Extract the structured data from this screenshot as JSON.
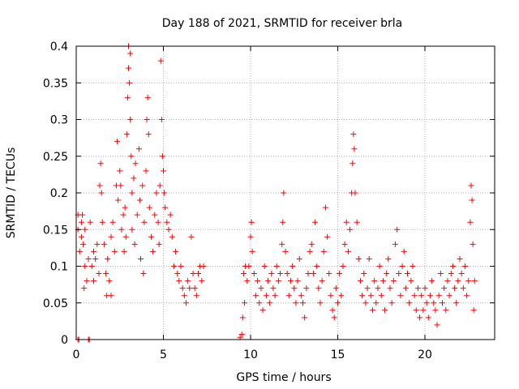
{
  "chart_data": {
    "type": "scatter",
    "title": "Day 188 of 2021, SRMTID for receiver brla",
    "xlabel": "GPS time / hours",
    "ylabel": "SRMTID / TECUs",
    "xlim": [
      0,
      24
    ],
    "ylim": [
      0,
      0.4
    ],
    "xticks": [
      0,
      5,
      10,
      15,
      20
    ],
    "xtick_labels": [
      "0",
      "5",
      "10",
      "15",
      "20"
    ],
    "yticks": [
      0,
      0.05,
      0.1,
      0.15,
      0.2,
      0.25,
      0.3,
      0.35,
      0.4
    ],
    "ytick_labels": [
      "0",
      "0.05",
      "0.1",
      "0.15",
      "0.2",
      "0.25",
      "0.3",
      "0.35",
      "0.4"
    ],
    "grid": true,
    "marker": "+",
    "color": "#ff0000",
    "series": [
      {
        "name": "SRMTID",
        "points": [
          [
            0.1,
            0.17
          ],
          [
            0.1,
            0.15
          ],
          [
            0.2,
            0.12
          ],
          [
            0.3,
            0.16
          ],
          [
            0.3,
            0.14
          ],
          [
            0.35,
            0.17
          ],
          [
            0.4,
            0.13
          ],
          [
            0.45,
            0.07
          ],
          [
            0.5,
            0.1
          ],
          [
            0.5,
            0.15
          ],
          [
            0.6,
            0.08
          ],
          [
            0.7,
            0.11
          ],
          [
            0.8,
            0.16
          ],
          [
            0.9,
            0.1
          ],
          [
            1.0,
            0.12
          ],
          [
            1.0,
            0.08
          ],
          [
            1.1,
            0.11
          ],
          [
            1.2,
            0.13
          ],
          [
            1.3,
            0.09
          ],
          [
            1.35,
            0.21
          ],
          [
            1.4,
            0.24
          ],
          [
            1.45,
            0.2
          ],
          [
            1.5,
            0.16
          ],
          [
            1.6,
            0.13
          ],
          [
            1.7,
            0.09
          ],
          [
            1.75,
            0.06
          ],
          [
            1.8,
            0.11
          ],
          [
            1.9,
            0.08
          ],
          [
            2.0,
            0.14
          ],
          [
            2.0,
            0.06
          ],
          [
            2.1,
            0.16
          ],
          [
            2.2,
            0.12
          ],
          [
            2.3,
            0.21
          ],
          [
            2.35,
            0.27
          ],
          [
            2.4,
            0.19
          ],
          [
            2.5,
            0.23
          ],
          [
            2.55,
            0.21
          ],
          [
            2.6,
            0.15
          ],
          [
            2.7,
            0.17
          ],
          [
            2.75,
            0.12
          ],
          [
            2.8,
            0.18
          ],
          [
            2.85,
            0.14
          ],
          [
            2.9,
            0.28
          ],
          [
            2.95,
            0.33
          ],
          [
            3.0,
            0.4
          ],
          [
            3.0,
            0.37
          ],
          [
            3.05,
            0.35
          ],
          [
            3.1,
            0.3
          ],
          [
            3.1,
            0.39
          ],
          [
            3.15,
            0.25
          ],
          [
            3.2,
            0.2
          ],
          [
            3.2,
            0.15
          ],
          [
            3.3,
            0.22
          ],
          [
            3.35,
            0.13
          ],
          [
            3.4,
            0.24
          ],
          [
            3.5,
            0.17
          ],
          [
            3.6,
            0.26
          ],
          [
            3.65,
            0.19
          ],
          [
            3.7,
            0.11
          ],
          [
            3.8,
            0.21
          ],
          [
            3.85,
            0.09
          ],
          [
            3.9,
            0.16
          ],
          [
            4.0,
            0.23
          ],
          [
            4.05,
            0.3
          ],
          [
            4.1,
            0.33
          ],
          [
            4.15,
            0.28
          ],
          [
            4.2,
            0.18
          ],
          [
            4.3,
            0.14
          ],
          [
            4.4,
            0.12
          ],
          [
            4.5,
            0.17
          ],
          [
            4.6,
            0.2
          ],
          [
            4.7,
            0.16
          ],
          [
            4.75,
            0.13
          ],
          [
            4.8,
            0.21
          ],
          [
            4.85,
            0.38
          ],
          [
            4.9,
            0.3
          ],
          [
            4.95,
            0.25
          ],
          [
            5.0,
            0.23
          ],
          [
            5.05,
            0.2
          ],
          [
            5.1,
            0.18
          ],
          [
            5.2,
            0.16
          ],
          [
            5.3,
            0.15
          ],
          [
            5.4,
            0.17
          ],
          [
            5.5,
            0.14
          ],
          [
            5.6,
            0.1
          ],
          [
            5.7,
            0.12
          ],
          [
            5.8,
            0.09
          ],
          [
            5.9,
            0.08
          ],
          [
            6.0,
            0.1
          ],
          [
            6.1,
            0.07
          ],
          [
            6.2,
            0.06
          ],
          [
            6.3,
            0.05
          ],
          [
            6.4,
            0.08
          ],
          [
            6.5,
            0.07
          ],
          [
            6.6,
            0.14
          ],
          [
            6.7,
            0.09
          ],
          [
            6.8,
            0.07
          ],
          [
            6.9,
            0.06
          ],
          [
            7.0,
            0.09
          ],
          [
            7.1,
            0.1
          ],
          [
            7.2,
            0.08
          ],
          [
            7.3,
            0.1
          ],
          [
            0.1,
            0
          ],
          [
            0.15,
            0
          ],
          [
            0.7,
            0
          ],
          [
            0.75,
            0
          ],
          [
            9.4,
            0.003
          ],
          [
            9.5,
            0.007
          ],
          [
            9.55,
            0.03
          ],
          [
            9.6,
            0.09
          ],
          [
            9.65,
            0.05
          ],
          [
            9.7,
            0.1
          ],
          [
            9.8,
            0.08
          ],
          [
            9.9,
            0.1
          ],
          [
            10.0,
            0.14
          ],
          [
            10.05,
            0.16
          ],
          [
            10.1,
            0.12
          ],
          [
            10.2,
            0.09
          ],
          [
            10.3,
            0.06
          ],
          [
            10.4,
            0.08
          ],
          [
            10.5,
            0.05
          ],
          [
            10.6,
            0.07
          ],
          [
            10.7,
            0.04
          ],
          [
            10.8,
            0.1
          ],
          [
            10.9,
            0.06
          ],
          [
            11.0,
            0.08
          ],
          [
            11.1,
            0.05
          ],
          [
            11.2,
            0.09
          ],
          [
            11.3,
            0.07
          ],
          [
            11.4,
            0.06
          ],
          [
            11.5,
            0.1
          ],
          [
            11.6,
            0.08
          ],
          [
            11.7,
            0.09
          ],
          [
            11.8,
            0.13
          ],
          [
            11.85,
            0.16
          ],
          [
            11.9,
            0.2
          ],
          [
            12.0,
            0.12
          ],
          [
            12.1,
            0.09
          ],
          [
            12.2,
            0.06
          ],
          [
            12.3,
            0.08
          ],
          [
            12.4,
            0.1
          ],
          [
            12.5,
            0.07
          ],
          [
            12.6,
            0.05
          ],
          [
            12.7,
            0.08
          ],
          [
            12.8,
            0.11
          ],
          [
            12.9,
            0.06
          ],
          [
            13.0,
            0.05
          ],
          [
            13.1,
            0.03
          ],
          [
            13.2,
            0.07
          ],
          [
            13.3,
            0.09
          ],
          [
            13.4,
            0.12
          ],
          [
            13.5,
            0.13
          ],
          [
            13.6,
            0.09
          ],
          [
            13.7,
            0.16
          ],
          [
            13.8,
            0.1
          ],
          [
            13.9,
            0.07
          ],
          [
            14.0,
            0.05
          ],
          [
            14.1,
            0.08
          ],
          [
            14.2,
            0.12
          ],
          [
            14.3,
            0.18
          ],
          [
            14.4,
            0.14
          ],
          [
            14.5,
            0.09
          ],
          [
            14.6,
            0.06
          ],
          [
            14.7,
            0.04
          ],
          [
            14.8,
            0.03
          ],
          [
            14.9,
            0.07
          ],
          [
            15.0,
            0.05
          ],
          [
            15.1,
            0.09
          ],
          [
            15.2,
            0.06
          ],
          [
            15.3,
            0.1
          ],
          [
            15.4,
            0.13
          ],
          [
            15.5,
            0.16
          ],
          [
            15.6,
            0.12
          ],
          [
            15.7,
            0.15
          ],
          [
            15.8,
            0.2
          ],
          [
            15.85,
            0.24
          ],
          [
            15.9,
            0.28
          ],
          [
            15.95,
            0.26
          ],
          [
            16.0,
            0.2
          ],
          [
            16.1,
            0.16
          ],
          [
            16.2,
            0.11
          ],
          [
            16.3,
            0.08
          ],
          [
            16.4,
            0.06
          ],
          [
            16.5,
            0.09
          ],
          [
            16.6,
            0.05
          ],
          [
            16.7,
            0.07
          ],
          [
            16.8,
            0.11
          ],
          [
            16.9,
            0.06
          ],
          [
            17.0,
            0.04
          ],
          [
            17.1,
            0.08
          ],
          [
            17.2,
            0.05
          ],
          [
            17.3,
            0.07
          ],
          [
            17.4,
            0.1
          ],
          [
            17.5,
            0.06
          ],
          [
            17.6,
            0.08
          ],
          [
            17.7,
            0.04
          ],
          [
            17.8,
            0.09
          ],
          [
            17.9,
            0.11
          ],
          [
            18.0,
            0.07
          ],
          [
            18.1,
            0.05
          ],
          [
            18.2,
            0.08
          ],
          [
            18.3,
            0.13
          ],
          [
            18.4,
            0.15
          ],
          [
            18.5,
            0.09
          ],
          [
            18.6,
            0.06
          ],
          [
            18.7,
            0.1
          ],
          [
            18.8,
            0.12
          ],
          [
            18.9,
            0.07
          ],
          [
            19.0,
            0.09
          ],
          [
            19.1,
            0.05
          ],
          [
            19.2,
            0.08
          ],
          [
            19.3,
            0.1
          ],
          [
            19.4,
            0.06
          ],
          [
            19.5,
            0.04
          ],
          [
            19.6,
            0.07
          ],
          [
            19.7,
            0.03
          ],
          [
            19.8,
            0.06
          ],
          [
            19.9,
            0.04
          ],
          [
            20.0,
            0.07
          ],
          [
            20.1,
            0.05
          ],
          [
            20.2,
            0.03
          ],
          [
            20.3,
            0.06
          ],
          [
            20.4,
            0.08
          ],
          [
            20.5,
            0.05
          ],
          [
            20.6,
            0.04
          ],
          [
            20.7,
            0.02
          ],
          [
            20.8,
            0.06
          ],
          [
            20.9,
            0.09
          ],
          [
            21.0,
            0.05
          ],
          [
            21.1,
            0.07
          ],
          [
            21.2,
            0.04
          ],
          [
            21.3,
            0.08
          ],
          [
            21.4,
            0.06
          ],
          [
            21.5,
            0.09
          ],
          [
            21.6,
            0.1
          ],
          [
            21.7,
            0.07
          ],
          [
            21.8,
            0.05
          ],
          [
            21.9,
            0.08
          ],
          [
            22.0,
            0.11
          ],
          [
            22.1,
            0.09
          ],
          [
            22.2,
            0.07
          ],
          [
            22.3,
            0.1
          ],
          [
            22.4,
            0.06
          ],
          [
            22.5,
            0.08
          ],
          [
            22.6,
            0.16
          ],
          [
            22.65,
            0.21
          ],
          [
            22.7,
            0.19
          ],
          [
            22.75,
            0.13
          ],
          [
            22.8,
            0.04
          ],
          [
            22.85,
            0.08
          ]
        ]
      }
    ]
  }
}
